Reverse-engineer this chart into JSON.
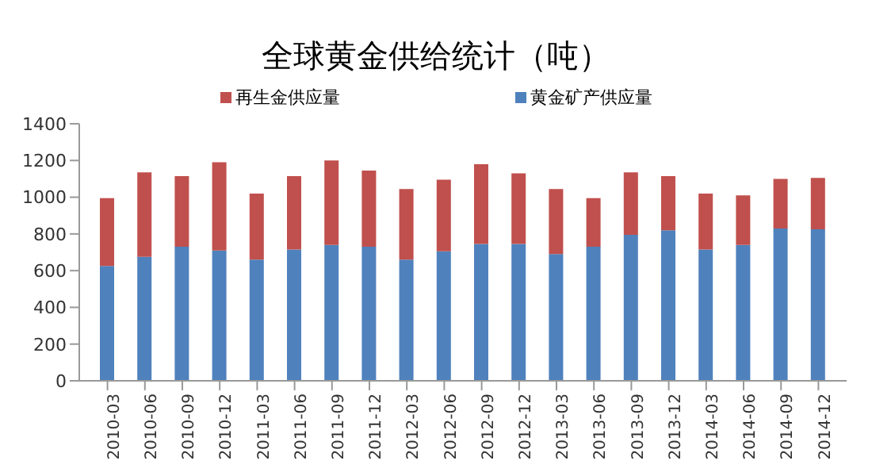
{
  "chart_data": {
    "type": "bar",
    "title": "全球黄金供给统计（吨）",
    "stacked": true,
    "categories": [
      "2010-03",
      "2010-06",
      "2010-09",
      "2010-12",
      "2011-03",
      "2011-06",
      "2011-09",
      "2011-12",
      "2012-03",
      "2012-06",
      "2012-09",
      "2012-12",
      "2013-03",
      "2013-06",
      "2013-09",
      "2013-12",
      "2014-03",
      "2014-06",
      "2014-09",
      "2014-12"
    ],
    "series": [
      {
        "name": "黄金矿产供应量",
        "color": "#4f81bd",
        "values": [
          625,
          675,
          730,
          710,
          660,
          715,
          740,
          730,
          660,
          705,
          745,
          745,
          690,
          730,
          795,
          820,
          715,
          740,
          830,
          825
        ]
      },
      {
        "name": "再生金供应量",
        "color": "#c0504d",
        "values": [
          370,
          460,
          385,
          480,
          360,
          400,
          460,
          415,
          385,
          390,
          435,
          385,
          355,
          265,
          340,
          295,
          305,
          270,
          270,
          280
        ]
      }
    ],
    "ylim": [
      0,
      1400
    ],
    "yticks": [
      0,
      200,
      400,
      600,
      800,
      1000,
      1200,
      1400
    ],
    "legend": "top"
  }
}
